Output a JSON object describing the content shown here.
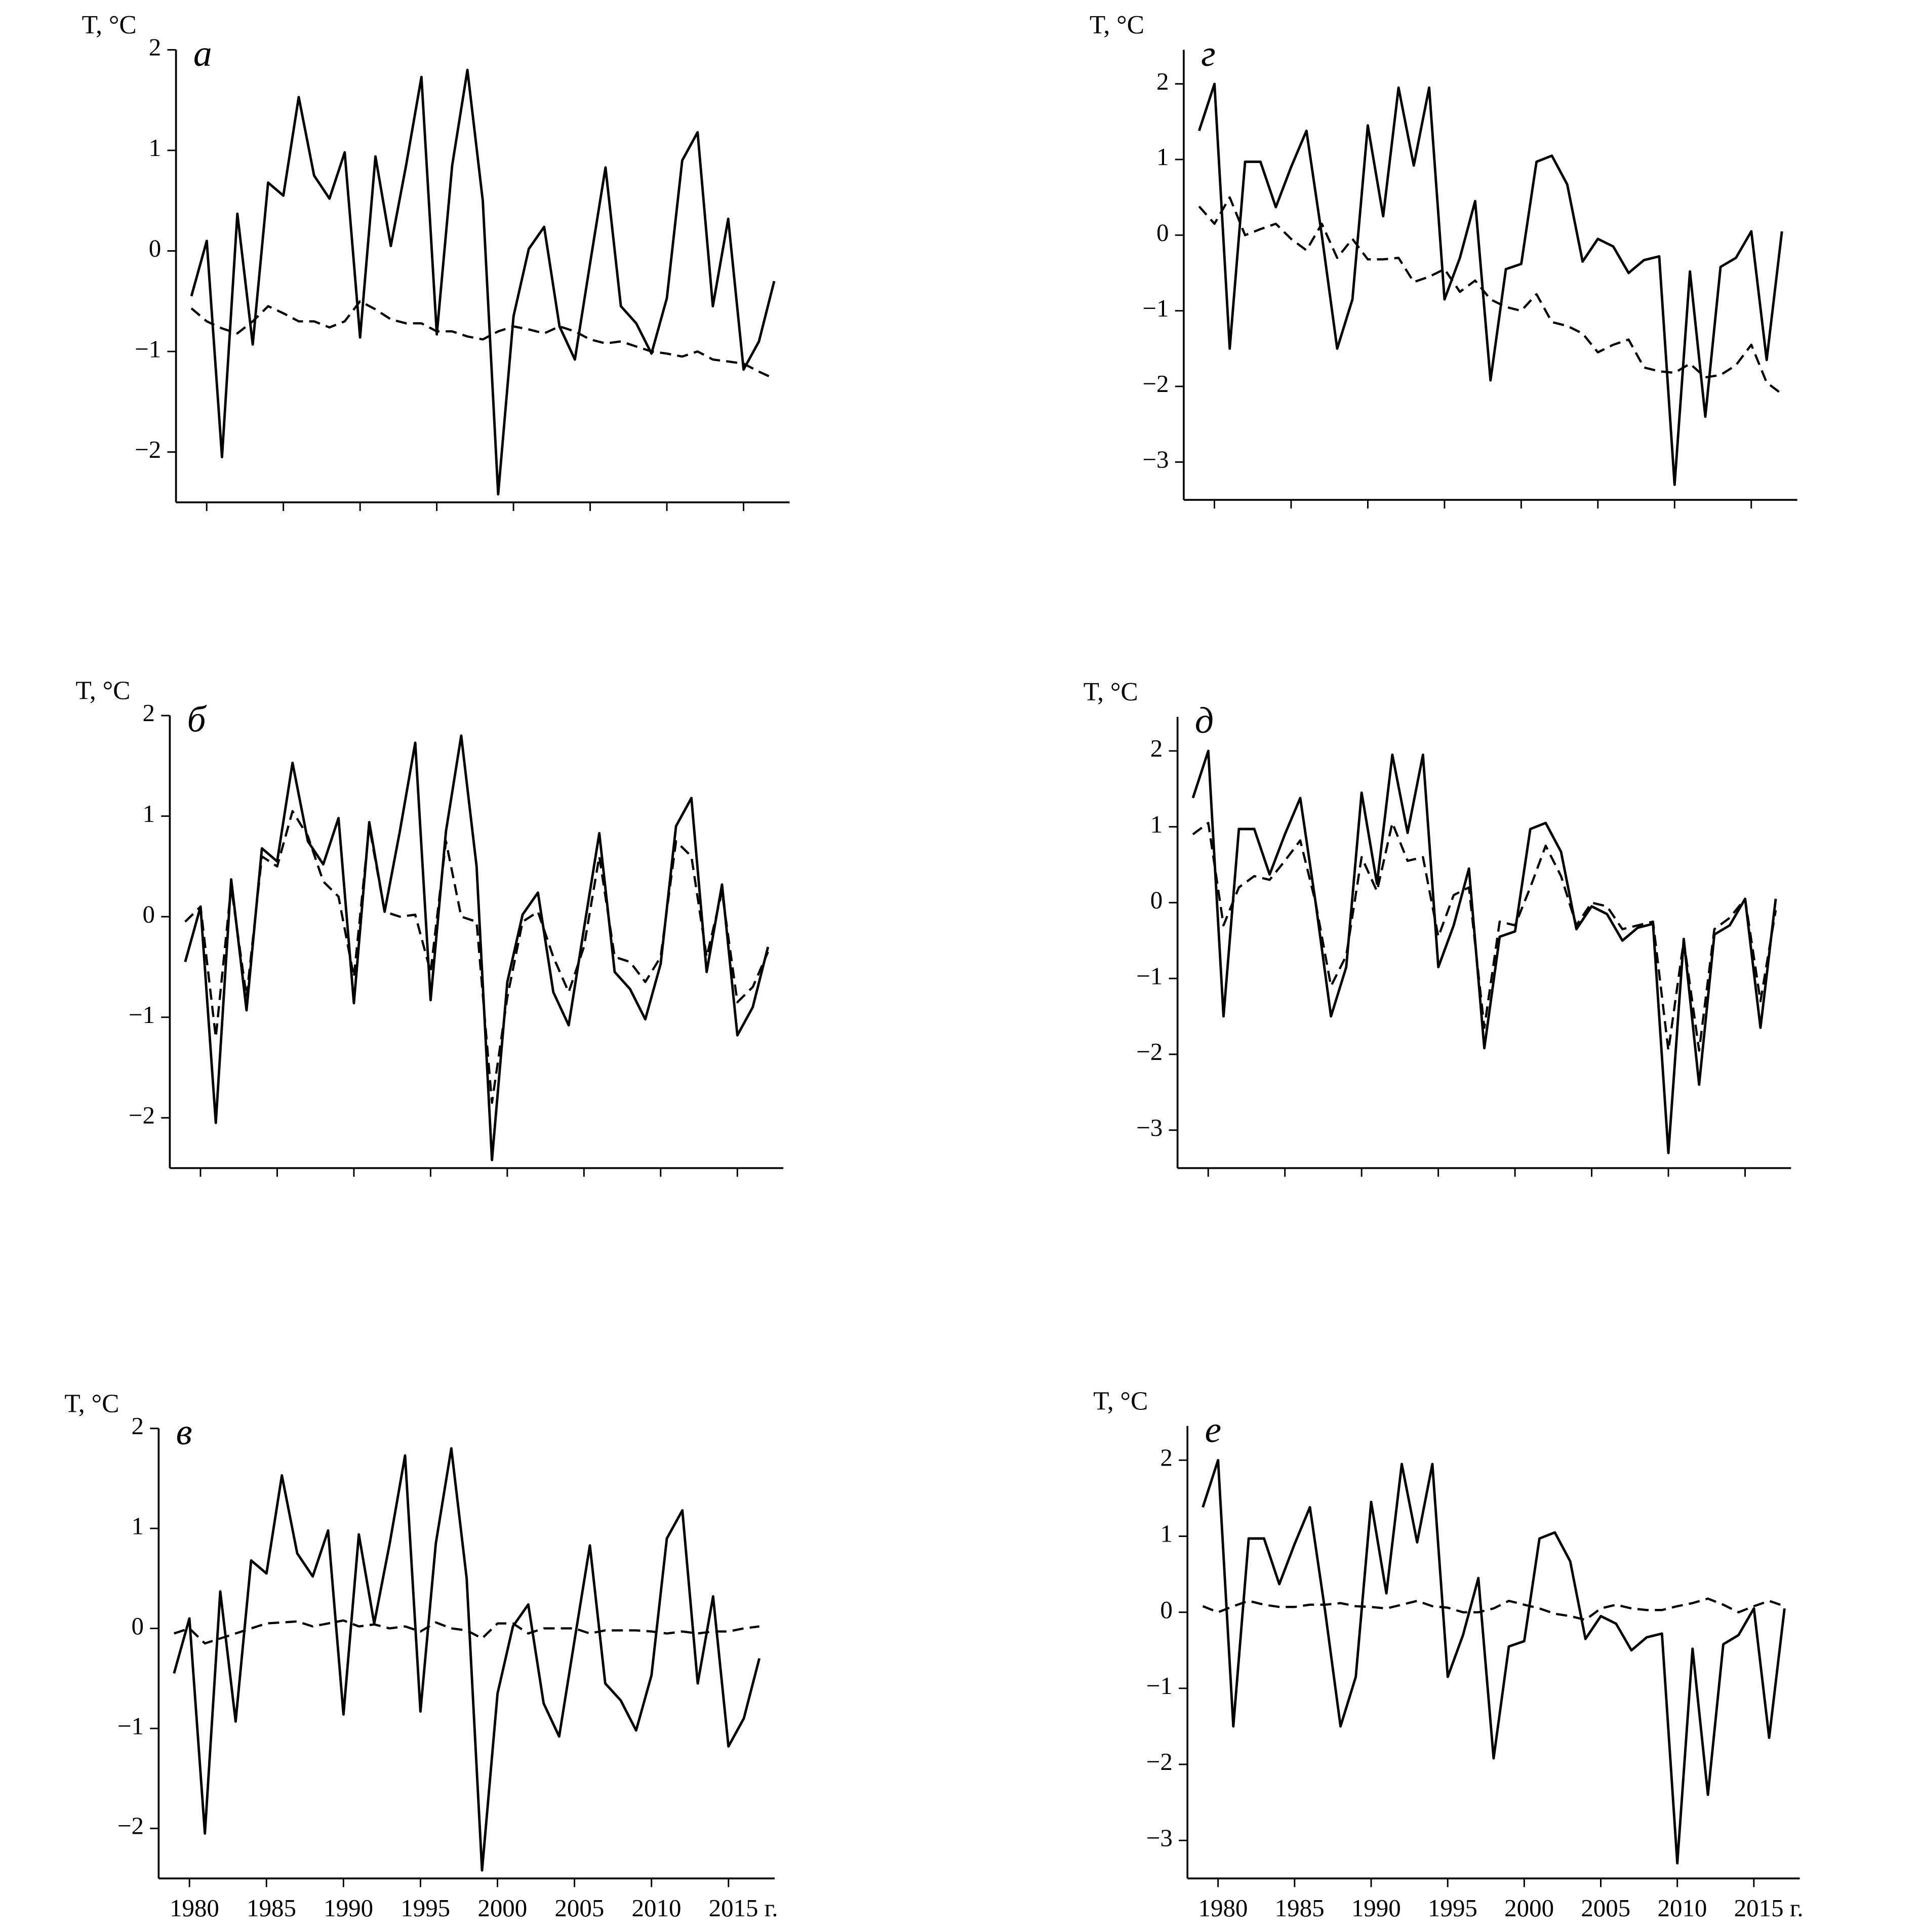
{
  "chart_data": [
    {
      "type": "line",
      "title": "а",
      "ylabel": "T, °C",
      "x": [
        1979,
        1980,
        1981,
        1982,
        1983,
        1984,
        1985,
        1986,
        1987,
        1988,
        1989,
        1990,
        1991,
        1992,
        1993,
        1994,
        1995,
        1996,
        1997,
        1998,
        1999,
        2000,
        2001,
        2002,
        2003,
        2004,
        2005,
        2006,
        2007,
        2008,
        2009,
        2010,
        2011,
        2012,
        2013,
        2014,
        2015,
        2016,
        2017
      ],
      "series": [
        {
          "color": "#000000",
          "style": "solid",
          "values": [
            -0.45,
            0.1,
            -2.05,
            0.37,
            -0.93,
            0.68,
            0.55,
            1.53,
            0.75,
            0.52,
            0.98,
            -0.86,
            0.94,
            0.05,
            0.85,
            1.73,
            -0.83,
            0.85,
            1.8,
            0.5,
            -2.42,
            -0.65,
            0.02,
            0.24,
            -0.75,
            -1.08,
            -0.12,
            0.83,
            -0.55,
            -0.72,
            -1.02,
            -0.47,
            0.9,
            1.18,
            -0.55,
            0.32,
            -1.18,
            -0.9,
            -0.3
          ]
        },
        {
          "color": "#000000",
          "style": "dashed",
          "values": [
            -0.57,
            -0.7,
            -0.77,
            -0.82,
            -0.7,
            -0.55,
            -0.62,
            -0.7,
            -0.7,
            -0.76,
            -0.7,
            -0.5,
            -0.58,
            -0.68,
            -0.72,
            -0.72,
            -0.8,
            -0.8,
            -0.85,
            -0.88,
            -0.8,
            -0.75,
            -0.78,
            -0.82,
            -0.75,
            -0.8,
            -0.88,
            -0.92,
            -0.9,
            -0.95,
            -1.0,
            -1.02,
            -1.05,
            -1.0,
            -1.08,
            -1.1,
            -1.12,
            -1.2,
            -1.27
          ]
        }
      ],
      "xlim": [
        1978,
        2018
      ],
      "xticks": [
        1980,
        1985,
        1990,
        1995,
        2000,
        2005,
        2010,
        2015
      ],
      "show_xtick_labels": false,
      "ylim": [
        -2.5,
        2
      ],
      "yticks": [
        2,
        1,
        0,
        {
          "value": -1,
          "label": "−1"
        },
        {
          "value": -2,
          "label": "−2"
        }
      ]
    },
    {
      "type": "line",
      "title": "б",
      "ylabel": "T, °C",
      "x": [
        1979,
        1980,
        1981,
        1982,
        1983,
        1984,
        1985,
        1986,
        1987,
        1988,
        1989,
        1990,
        1991,
        1992,
        1993,
        1994,
        1995,
        1996,
        1997,
        1998,
        1999,
        2000,
        2001,
        2002,
        2003,
        2004,
        2005,
        2006,
        2007,
        2008,
        2009,
        2010,
        2011,
        2012,
        2013,
        2014,
        2015,
        2016,
        2017
      ],
      "series": [
        {
          "color": "#000000",
          "style": "solid",
          "values": [
            -0.45,
            0.1,
            -2.05,
            0.37,
            -0.93,
            0.68,
            0.55,
            1.53,
            0.75,
            0.52,
            0.98,
            -0.86,
            0.94,
            0.05,
            0.85,
            1.73,
            -0.83,
            0.85,
            1.8,
            0.5,
            -2.42,
            -0.65,
            0.02,
            0.24,
            -0.75,
            -1.08,
            -0.12,
            0.83,
            -0.55,
            -0.72,
            -1.02,
            -0.47,
            0.9,
            1.18,
            -0.55,
            0.32,
            -1.18,
            -0.9,
            -0.3
          ]
        },
        {
          "color": "#000000",
          "style": "dashed",
          "values": [
            -0.05,
            0.1,
            -1.2,
            0.3,
            -0.8,
            0.6,
            0.5,
            1.05,
            0.8,
            0.35,
            0.2,
            -0.6,
            0.9,
            0.05,
            0.0,
            0.02,
            -0.55,
            0.75,
            0.0,
            -0.05,
            -1.85,
            -0.8,
            -0.05,
            0.05,
            -0.4,
            -0.75,
            -0.3,
            0.6,
            -0.4,
            -0.45,
            -0.65,
            -0.4,
            0.75,
            0.6,
            -0.4,
            0.25,
            -0.85,
            -0.7,
            -0.35
          ]
        }
      ],
      "xlim": [
        1978,
        2018
      ],
      "xticks": [
        1980,
        1985,
        1990,
        1995,
        2000,
        2005,
        2010,
        2015
      ],
      "show_xtick_labels": false,
      "ylim": [
        -2.5,
        2
      ],
      "yticks": [
        2,
        1,
        0,
        {
          "value": -1,
          "label": "−1"
        },
        {
          "value": -2,
          "label": "−2"
        }
      ]
    },
    {
      "type": "line",
      "title": "в",
      "ylabel": "T, °C",
      "x": [
        1979,
        1980,
        1981,
        1982,
        1983,
        1984,
        1985,
        1986,
        1987,
        1988,
        1989,
        1990,
        1991,
        1992,
        1993,
        1994,
        1995,
        1996,
        1997,
        1998,
        1999,
        2000,
        2001,
        2002,
        2003,
        2004,
        2005,
        2006,
        2007,
        2008,
        2009,
        2010,
        2011,
        2012,
        2013,
        2014,
        2015,
        2016,
        2017
      ],
      "series": [
        {
          "color": "#000000",
          "style": "solid",
          "values": [
            -0.45,
            0.1,
            -2.05,
            0.37,
            -0.93,
            0.68,
            0.55,
            1.53,
            0.75,
            0.52,
            0.98,
            -0.86,
            0.94,
            0.05,
            0.85,
            1.73,
            -0.83,
            0.85,
            1.8,
            0.5,
            -2.42,
            -0.65,
            0.02,
            0.24,
            -0.75,
            -1.08,
            -0.12,
            0.83,
            -0.55,
            -0.72,
            -1.02,
            -0.47,
            0.9,
            1.18,
            -0.55,
            0.32,
            -1.18,
            -0.9,
            -0.3
          ]
        },
        {
          "color": "#000000",
          "style": "dashed",
          "values": [
            -0.05,
            0.0,
            -0.15,
            -0.1,
            -0.05,
            0.0,
            0.05,
            0.06,
            0.07,
            0.02,
            0.05,
            0.08,
            0.02,
            0.04,
            0.0,
            0.02,
            -0.03,
            0.06,
            0.0,
            -0.02,
            -0.1,
            0.05,
            0.05,
            -0.05,
            0.0,
            0.0,
            0.0,
            -0.05,
            -0.02,
            -0.02,
            -0.02,
            -0.03,
            -0.05,
            -0.03,
            -0.05,
            -0.03,
            -0.03,
            0.0,
            0.02
          ]
        }
      ],
      "xlim": [
        1978,
        2018
      ],
      "xticks": [
        1980,
        1985,
        1990,
        1995,
        2000,
        2005,
        2010,
        {
          "value": 2015,
          "label": "2015 г."
        }
      ],
      "show_xtick_labels": true,
      "ylim": [
        -2.5,
        2
      ],
      "yticks": [
        2,
        1,
        0,
        {
          "value": -1,
          "label": "−1"
        },
        {
          "value": -2,
          "label": "−2"
        }
      ]
    },
    {
      "type": "line",
      "title": "г",
      "ylabel": "T, °C",
      "x": [
        1979,
        1980,
        1981,
        1982,
        1983,
        1984,
        1985,
        1986,
        1987,
        1988,
        1989,
        1990,
        1991,
        1992,
        1993,
        1994,
        1995,
        1996,
        1997,
        1998,
        1999,
        2000,
        2001,
        2002,
        2003,
        2004,
        2005,
        2006,
        2007,
        2008,
        2009,
        2010,
        2011,
        2012,
        2013,
        2014,
        2015,
        2016,
        2017
      ],
      "series": [
        {
          "color": "#000000",
          "style": "solid",
          "values": [
            1.38,
            2.0,
            -1.5,
            0.97,
            0.97,
            0.37,
            0.9,
            1.38,
            0.0,
            -1.5,
            -0.85,
            1.45,
            0.25,
            1.95,
            0.92,
            1.95,
            -0.85,
            -0.3,
            0.45,
            -1.92,
            -0.45,
            -0.38,
            0.97,
            1.05,
            0.67,
            -0.35,
            -0.05,
            -0.15,
            -0.5,
            -0.33,
            -0.28,
            -3.3,
            -0.48,
            -2.4,
            -0.42,
            -0.3,
            0.05,
            -1.65,
            0.05
          ]
        },
        {
          "color": "#000000",
          "style": "dashed",
          "values": [
            0.38,
            0.15,
            0.5,
            0.0,
            0.08,
            0.15,
            -0.05,
            -0.2,
            0.15,
            -0.3,
            -0.05,
            -0.32,
            -0.32,
            -0.3,
            -0.62,
            -0.55,
            -0.45,
            -0.75,
            -0.6,
            -0.85,
            -0.95,
            -1.0,
            -0.78,
            -1.15,
            -1.2,
            -1.3,
            -1.55,
            -1.45,
            -1.38,
            -1.75,
            -1.8,
            -1.82,
            -1.7,
            -1.88,
            -1.85,
            -1.72,
            -1.45,
            -1.95,
            -2.1
          ]
        }
      ],
      "xlim": [
        1978,
        2018
      ],
      "xticks": [
        1980,
        1985,
        1990,
        1995,
        2000,
        2005,
        2010,
        2015
      ],
      "show_xtick_labels": false,
      "ylim": [
        -3.5,
        2.45
      ],
      "yticks": [
        2,
        1,
        0,
        {
          "value": -1,
          "label": "−1"
        },
        {
          "value": -2,
          "label": "−2"
        },
        {
          "value": -3,
          "label": "−3"
        }
      ]
    },
    {
      "type": "line",
      "title": "д",
      "ylabel": "T, °C",
      "x": [
        1979,
        1980,
        1981,
        1982,
        1983,
        1984,
        1985,
        1986,
        1987,
        1988,
        1989,
        1990,
        1991,
        1992,
        1993,
        1994,
        1995,
        1996,
        1997,
        1998,
        1999,
        2000,
        2001,
        2002,
        2003,
        2004,
        2005,
        2006,
        2007,
        2008,
        2009,
        2010,
        2011,
        2012,
        2013,
        2014,
        2015,
        2016,
        2017
      ],
      "series": [
        {
          "color": "#000000",
          "style": "solid",
          "values": [
            1.38,
            2.0,
            -1.5,
            0.97,
            0.97,
            0.37,
            0.9,
            1.38,
            0.0,
            -1.5,
            -0.85,
            1.45,
            0.25,
            1.95,
            0.92,
            1.95,
            -0.85,
            -0.3,
            0.45,
            -1.92,
            -0.45,
            -0.38,
            0.97,
            1.05,
            0.67,
            -0.35,
            -0.05,
            -0.15,
            -0.5,
            -0.33,
            -0.28,
            -3.3,
            -0.48,
            -2.4,
            -0.42,
            -0.3,
            0.05,
            -1.65,
            0.05
          ]
        },
        {
          "color": "#000000",
          "style": "dashed",
          "values": [
            0.9,
            1.05,
            -0.3,
            0.2,
            0.35,
            0.3,
            0.55,
            0.82,
            0.0,
            -1.1,
            -0.7,
            0.6,
            0.15,
            1.05,
            0.55,
            0.6,
            -0.45,
            0.1,
            0.2,
            -1.65,
            -0.25,
            -0.3,
            0.2,
            0.75,
            0.35,
            -0.3,
            0.0,
            -0.05,
            -0.35,
            -0.3,
            -0.25,
            -1.95,
            -0.5,
            -1.95,
            -0.35,
            -0.2,
            0.05,
            -1.3,
            -0.1
          ]
        }
      ],
      "xlim": [
        1978,
        2018
      ],
      "xticks": [
        1980,
        1985,
        1990,
        1995,
        2000,
        2005,
        2010,
        2015
      ],
      "show_xtick_labels": false,
      "ylim": [
        -3.5,
        2.45
      ],
      "yticks": [
        2,
        1,
        0,
        {
          "value": -1,
          "label": "−1"
        },
        {
          "value": -2,
          "label": "−2"
        },
        {
          "value": -3,
          "label": "−3"
        }
      ]
    },
    {
      "type": "line",
      "title": "е",
      "ylabel": "T, °C",
      "x": [
        1979,
        1980,
        1981,
        1982,
        1983,
        1984,
        1985,
        1986,
        1987,
        1988,
        1989,
        1990,
        1991,
        1992,
        1993,
        1994,
        1995,
        1996,
        1997,
        1998,
        1999,
        2000,
        2001,
        2002,
        2003,
        2004,
        2005,
        2006,
        2007,
        2008,
        2009,
        2010,
        2011,
        2012,
        2013,
        2014,
        2015,
        2016,
        2017
      ],
      "series": [
        {
          "color": "#000000",
          "style": "solid",
          "values": [
            1.38,
            2.0,
            -1.5,
            0.97,
            0.97,
            0.37,
            0.9,
            1.38,
            0.0,
            -1.5,
            -0.85,
            1.45,
            0.25,
            1.95,
            0.92,
            1.95,
            -0.85,
            -0.3,
            0.45,
            -1.92,
            -0.45,
            -0.38,
            0.97,
            1.05,
            0.67,
            -0.35,
            -0.05,
            -0.15,
            -0.5,
            -0.33,
            -0.28,
            -3.3,
            -0.48,
            -2.4,
            -0.42,
            -0.3,
            0.05,
            -1.65,
            0.05
          ]
        },
        {
          "color": "#000000",
          "style": "dashed",
          "values": [
            0.08,
            0.0,
            0.08,
            0.15,
            0.1,
            0.07,
            0.07,
            0.1,
            0.1,
            0.12,
            0.08,
            0.07,
            0.05,
            0.1,
            0.15,
            0.08,
            0.06,
            0.0,
            0.0,
            0.05,
            0.15,
            0.1,
            0.05,
            -0.02,
            -0.05,
            -0.1,
            0.05,
            0.1,
            0.05,
            0.03,
            0.03,
            0.08,
            0.12,
            0.18,
            0.1,
            0.0,
            0.08,
            0.15,
            0.08
          ]
        }
      ],
      "xlim": [
        1978,
        2018
      ],
      "xticks": [
        1980,
        1985,
        1990,
        1995,
        2000,
        2005,
        2010,
        {
          "value": 2015,
          "label": "2015 г."
        }
      ],
      "show_xtick_labels": true,
      "ylim": [
        -3.5,
        2.45
      ],
      "yticks": [
        2,
        1,
        0,
        {
          "value": -1,
          "label": "−1"
        },
        {
          "value": -2,
          "label": "−2"
        },
        {
          "value": -3,
          "label": "−3"
        }
      ]
    }
  ]
}
